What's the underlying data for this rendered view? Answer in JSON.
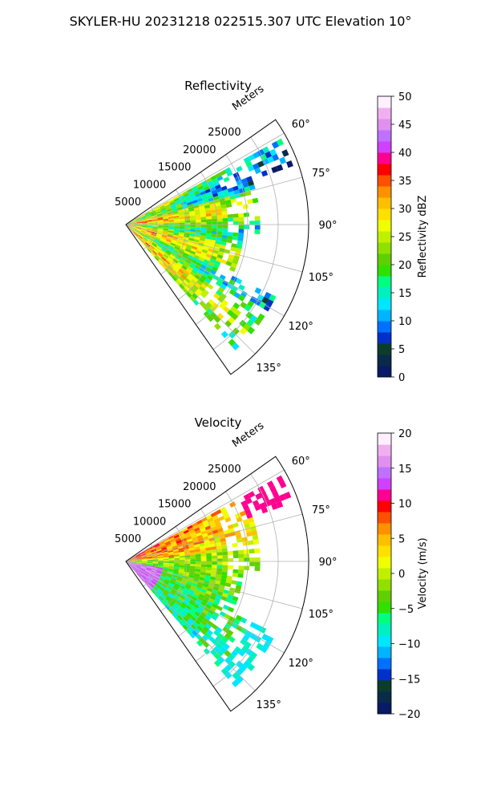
{
  "figure_title": "SKYLER-HU  20231218  022515.307 UTC Elevation 10°",
  "chart_data": [
    {
      "type": "heatmap",
      "projection": "polar-sector",
      "title": "Reflectivity",
      "radial_label": "Meters",
      "radial_ticks": [
        "5000",
        "10000",
        "15000",
        "20000",
        "25000"
      ],
      "radial_tick_values": [
        5000,
        10000,
        15000,
        20000,
        25000
      ],
      "r_max": 30000,
      "angle_ticks": [
        "60°",
        "75°",
        "90°",
        "105°",
        "120°",
        "135°"
      ],
      "angle_tick_values": [
        60,
        75,
        90,
        105,
        120,
        135
      ],
      "angle_range": [
        55,
        145
      ],
      "grid": true,
      "colorbar": {
        "label": "Reflectivity dBZ",
        "ticks": [
          "0",
          "5",
          "10",
          "15",
          "20",
          "25",
          "30",
          "35",
          "40",
          "45",
          "50"
        ],
        "range": [
          0,
          50
        ],
        "colors": [
          "#081a66",
          "#0a2a4a",
          "#0b3d2c",
          "#0030c8",
          "#0070ff",
          "#00b4ff",
          "#00e6ff",
          "#00f0c0",
          "#00ff80",
          "#30e000",
          "#60d000",
          "#90e000",
          "#c0f000",
          "#f0ff00",
          "#ffe000",
          "#ffc000",
          "#ff9000",
          "#ff5000",
          "#ff0000",
          "#ff0090",
          "#d040ff",
          "#c070ff",
          "#e090f0",
          "#f0b0f0",
          "#fff0ff"
        ]
      }
    },
    {
      "type": "heatmap",
      "projection": "polar-sector",
      "title": "Velocity",
      "radial_label": "Meters",
      "radial_ticks": [
        "5000",
        "10000",
        "15000",
        "20000",
        "25000"
      ],
      "radial_tick_values": [
        5000,
        10000,
        15000,
        20000,
        25000
      ],
      "r_max": 30000,
      "angle_ticks": [
        "60°",
        "75°",
        "90°",
        "105°",
        "120°",
        "135°"
      ],
      "angle_tick_values": [
        60,
        75,
        90,
        105,
        120,
        135
      ],
      "angle_range": [
        55,
        145
      ],
      "grid": true,
      "colorbar": {
        "label": "Velocity (m/s)",
        "ticks": [
          "−20",
          "−15",
          "−10",
          "−5",
          "0",
          "5",
          "10",
          "15",
          "20"
        ],
        "range": [
          -20,
          20
        ],
        "colors": [
          "#081a66",
          "#0a2a4a",
          "#0b3d2c",
          "#0030c8",
          "#0070ff",
          "#00b4ff",
          "#00e6ff",
          "#00f0c0",
          "#00ff80",
          "#30e000",
          "#60d000",
          "#90e000",
          "#c0f000",
          "#f0ff00",
          "#ffe000",
          "#ffc000",
          "#ff9000",
          "#ff5000",
          "#ff0000",
          "#ff0090",
          "#d040ff",
          "#c070ff",
          "#e090f0",
          "#f0b0f0",
          "#fff0ff"
        ]
      }
    }
  ]
}
